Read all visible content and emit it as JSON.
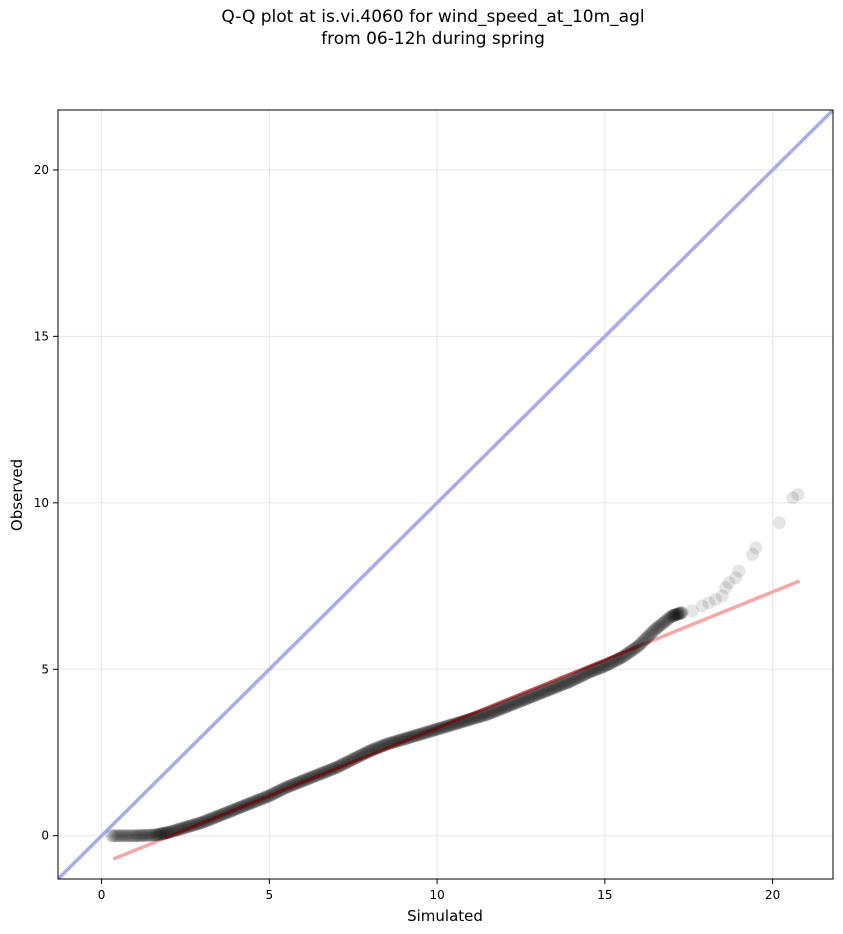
{
  "chart_data": {
    "type": "scatter",
    "title_line1": "Q-Q plot at is.vi.4060 for wind_speed_at_10m_agl",
    "title_line2": "from 06-12h during spring",
    "xlabel": "Simulated",
    "ylabel": "Observed",
    "xlim": [
      -1.3,
      21.8
    ],
    "ylim": [
      -1.3,
      21.8
    ],
    "xticks": [
      0,
      5,
      10,
      15,
      20
    ],
    "yticks": [
      0,
      5,
      10,
      15,
      20
    ],
    "grid": true,
    "colors": {
      "points": "#000000",
      "one_to_one_line": "#aaaaee",
      "fit_line": "#f5a8a8",
      "fit_line_dark": "#8b0000"
    },
    "one_to_one": {
      "from": [
        -1.3,
        -1.3
      ],
      "to": [
        21.8,
        21.8
      ]
    },
    "fit_line": {
      "from": [
        0.35,
        -0.7
      ],
      "to": [
        20.8,
        7.65
      ]
    },
    "points_curve": [
      [
        0.3,
        0.0
      ],
      [
        1.0,
        0.0
      ],
      [
        1.6,
        0.02
      ],
      [
        2.0,
        0.1
      ],
      [
        2.5,
        0.25
      ],
      [
        3.0,
        0.4
      ],
      [
        3.5,
        0.6
      ],
      [
        4.0,
        0.8
      ],
      [
        4.5,
        1.0
      ],
      [
        5.0,
        1.2
      ],
      [
        5.5,
        1.45
      ],
      [
        6.0,
        1.65
      ],
      [
        6.5,
        1.85
      ],
      [
        7.0,
        2.05
      ],
      [
        7.5,
        2.3
      ],
      [
        8.0,
        2.55
      ],
      [
        8.5,
        2.75
      ],
      [
        9.0,
        2.9
      ],
      [
        9.5,
        3.05
      ],
      [
        10.0,
        3.2
      ],
      [
        10.5,
        3.35
      ],
      [
        11.0,
        3.5
      ],
      [
        11.5,
        3.65
      ],
      [
        12.0,
        3.85
      ],
      [
        12.5,
        4.05
      ],
      [
        13.0,
        4.25
      ],
      [
        13.5,
        4.45
      ],
      [
        14.0,
        4.65
      ],
      [
        14.5,
        4.9
      ],
      [
        15.0,
        5.1
      ],
      [
        15.5,
        5.35
      ],
      [
        16.0,
        5.7
      ],
      [
        16.5,
        6.2
      ],
      [
        17.0,
        6.6
      ],
      [
        17.3,
        6.7
      ]
    ],
    "tail_points": [
      [
        17.6,
        6.75
      ],
      [
        17.9,
        6.9
      ],
      [
        18.1,
        7.0
      ],
      [
        18.3,
        7.1
      ],
      [
        18.5,
        7.2
      ],
      [
        18.6,
        7.45
      ],
      [
        18.7,
        7.6
      ],
      [
        18.9,
        7.75
      ],
      [
        19.0,
        7.95
      ],
      [
        19.4,
        8.45
      ],
      [
        19.5,
        8.65
      ],
      [
        20.2,
        9.4
      ],
      [
        20.6,
        10.15
      ],
      [
        20.75,
        10.25
      ]
    ]
  }
}
